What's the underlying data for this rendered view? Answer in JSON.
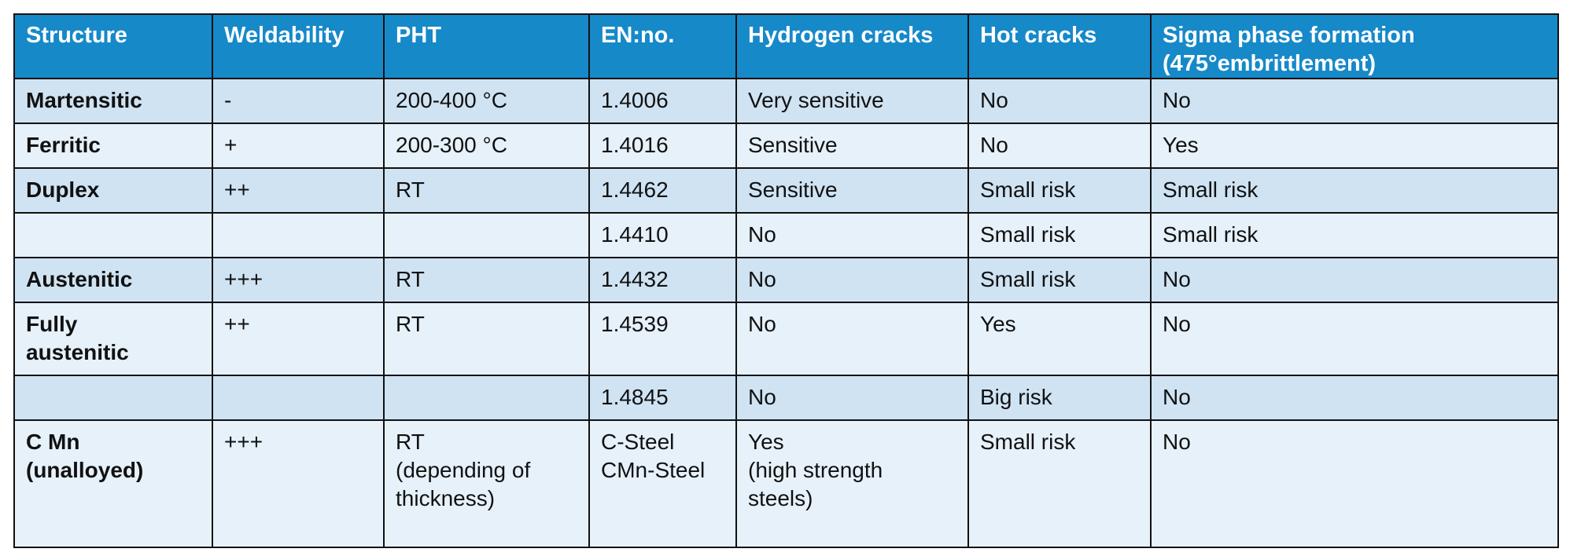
{
  "table": {
    "headers": [
      "Structure",
      "Weldability",
      "PHT",
      "EN:no.",
      "Hydrogen cracks",
      "Hot cracks",
      "Sigma phase formation\n(475°embrittlement)"
    ],
    "rows": [
      [
        "Martensitic",
        "-",
        "200-400 °C",
        "1.4006",
        "Very sensitive",
        "No",
        "No"
      ],
      [
        "Ferritic",
        "+",
        "200-300 °C",
        "1.4016",
        "Sensitive",
        "No",
        "Yes"
      ],
      [
        "Duplex",
        "++",
        "RT",
        "1.4462",
        "Sensitive",
        "Small risk",
        "Small risk"
      ],
      [
        "",
        "",
        "",
        "1.4410",
        "No",
        "Small risk",
        "Small risk"
      ],
      [
        "Austenitic",
        "+++",
        "RT",
        "1.4432",
        "No",
        "Small risk",
        "No"
      ],
      [
        "Fully\naustenitic",
        "++",
        "RT",
        "1.4539",
        "No",
        "Yes",
        "No"
      ],
      [
        "",
        "",
        "",
        "1.4845",
        "No",
        "Big risk",
        "No"
      ],
      [
        "C Mn\n(unalloyed)",
        "+++",
        "RT\n(depending of\nthickness)",
        "C-Steel\nCMn-Steel",
        "Yes\n(high strength\nsteels)",
        "Small risk",
        "No"
      ]
    ]
  },
  "colors": {
    "header_bg": "#1689c9",
    "header_text": "#ffffff",
    "row_odd": "#cfe3f3",
    "row_even": "#e6f1fa",
    "border": "#111111"
  }
}
